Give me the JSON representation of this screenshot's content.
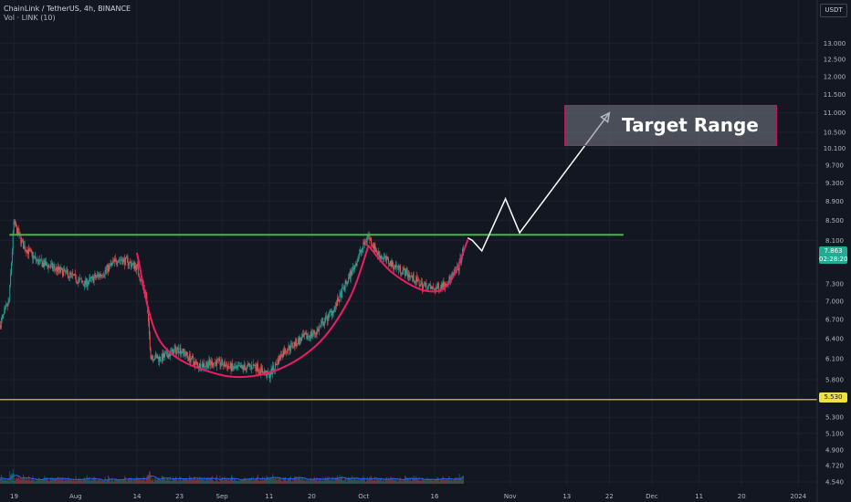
{
  "header": {
    "title": "ChainLink / TetherUS, 4h, BINANCE",
    "volume_label": "Vol · LINK (10)"
  },
  "currency": "USDT",
  "chart_data": {
    "type": "candlestick",
    "symbol": "LINK/USDT",
    "interval": "4h",
    "y_ticks": [
      "13.000",
      "12.500",
      "12.000",
      "11.500",
      "11.000",
      "10.500",
      "10.100",
      "9.700",
      "9.300",
      "8.900",
      "8.500",
      "8.100",
      "7.300",
      "7.000",
      "6.700",
      "6.400",
      "6.100",
      "5.800",
      "5.300",
      "5.100",
      "4.900",
      "4.720",
      "4.540"
    ],
    "y_scale": "log",
    "ylim": [
      4.49,
      13.65
    ],
    "x_ticks": [
      "19",
      "Aug",
      "14",
      "23",
      "Sep",
      "11",
      "20",
      "Oct",
      "16",
      "Nov",
      "13",
      "22",
      "Dec",
      "11",
      "20",
      "2024"
    ],
    "xlim": [
      "2023-07-16",
      "2024-01-05"
    ],
    "last_price": "7.863",
    "countdown": "02:28:20",
    "support_price": "5.530",
    "resistance_price": 8.21,
    "target_label": "Target Range",
    "target_range": [
      10.1,
      11.25
    ],
    "price_path": [
      [
        "2023-07-16",
        6.6
      ],
      [
        "2023-07-18",
        7.0
      ],
      [
        "2023-07-19",
        8.45
      ],
      [
        "2023-07-21",
        8.0
      ],
      [
        "2023-07-24",
        7.7
      ],
      [
        "2023-07-27",
        7.6
      ],
      [
        "2023-07-31",
        7.45
      ],
      [
        "2023-08-03",
        7.3
      ],
      [
        "2023-08-07",
        7.5
      ],
      [
        "2023-08-10",
        7.75
      ],
      [
        "2023-08-12",
        7.7
      ],
      [
        "2023-08-14",
        7.6
      ],
      [
        "2023-08-16",
        7.1
      ],
      [
        "2023-08-17",
        6.15
      ],
      [
        "2023-08-19",
        6.1
      ],
      [
        "2023-08-23",
        6.25
      ],
      [
        "2023-08-27",
        6.0
      ],
      [
        "2023-08-31",
        6.05
      ],
      [
        "2023-09-04",
        5.95
      ],
      [
        "2023-09-08",
        6.0
      ],
      [
        "2023-09-11",
        5.85
      ],
      [
        "2023-09-14",
        6.2
      ],
      [
        "2023-09-18",
        6.4
      ],
      [
        "2023-09-21",
        6.5
      ],
      [
        "2023-09-25",
        6.9
      ],
      [
        "2023-09-29",
        7.6
      ],
      [
        "2023-10-02",
        8.2
      ],
      [
        "2023-10-04",
        7.85
      ],
      [
        "2023-10-07",
        7.65
      ],
      [
        "2023-10-10",
        7.5
      ],
      [
        "2023-10-13",
        7.3
      ],
      [
        "2023-10-16",
        7.2
      ],
      [
        "2023-10-19",
        7.35
      ],
      [
        "2023-10-21",
        7.55
      ],
      [
        "2023-10-22",
        7.86
      ]
    ],
    "annotations": {
      "cup": [
        [
          "2023-08-14",
          7.85
        ],
        [
          "2023-08-19",
          6.35
        ],
        [
          "2023-08-31",
          5.88
        ],
        [
          "2023-09-11",
          5.9
        ],
        [
          "2023-09-21",
          6.3
        ],
        [
          "2023-09-28",
          7.05
        ],
        [
          "2023-10-02",
          8.0
        ]
      ],
      "handle": [
        [
          "2023-10-02",
          8.0
        ],
        [
          "2023-10-07",
          7.5
        ],
        [
          "2023-10-14",
          7.18
        ],
        [
          "2023-10-19",
          7.3
        ],
        [
          "2023-10-23",
          8.1
        ]
      ],
      "projection": [
        [
          "2023-10-23",
          8.15
        ],
        [
          "2023-10-24",
          8.1
        ],
        [
          "2023-10-26",
          7.9
        ],
        [
          "2023-10-31",
          8.95
        ],
        [
          "2023-11-03",
          8.25
        ],
        [
          "2023-11-22",
          11.0
        ]
      ]
    }
  }
}
